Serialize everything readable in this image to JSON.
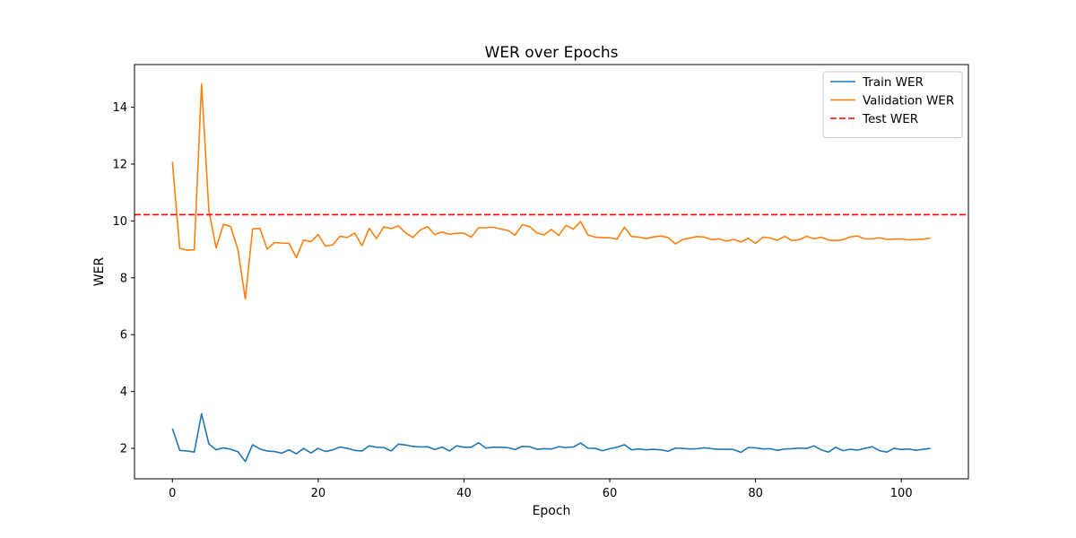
{
  "chart_data": {
    "type": "line",
    "title": "WER over Epochs",
    "xlabel": "Epoch",
    "ylabel": "WER",
    "xlim": [
      -5.2,
      109.2
    ],
    "ylim": [
      0.93,
      15.5
    ],
    "xticks": [
      0,
      20,
      40,
      60,
      80,
      100
    ],
    "yticks": [
      2,
      4,
      6,
      8,
      10,
      12,
      14
    ],
    "grid": false,
    "legend_position": "top-right",
    "series": [
      {
        "name": "Train WER",
        "color": "#1f77b4",
        "style": "solid",
        "x_start": 0,
        "values": [
          2.7,
          1.93,
          1.91,
          1.87,
          3.22,
          2.16,
          1.95,
          2.02,
          1.97,
          1.88,
          1.54,
          2.13,
          1.98,
          1.91,
          1.89,
          1.83,
          1.95,
          1.81,
          2.0,
          1.84,
          2.0,
          1.89,
          1.95,
          2.05,
          2.0,
          1.93,
          1.91,
          2.09,
          2.04,
          2.03,
          1.91,
          2.15,
          2.12,
          2.07,
          2.05,
          2.06,
          1.96,
          2.05,
          1.91,
          2.09,
          2.04,
          2.04,
          2.2,
          2.01,
          2.04,
          2.04,
          2.03,
          1.96,
          2.07,
          2.06,
          1.97,
          1.99,
          1.98,
          2.06,
          2.03,
          2.05,
          2.19,
          2.01,
          2.0,
          1.92,
          1.99,
          2.04,
          2.13,
          1.95,
          1.98,
          1.95,
          1.97,
          1.95,
          1.9,
          2.01,
          2.0,
          1.98,
          1.99,
          2.02,
          1.99,
          1.97,
          1.97,
          1.96,
          1.86,
          2.03,
          2.02,
          1.98,
          1.99,
          1.93,
          1.98,
          1.99,
          2.01,
          2.0,
          2.09,
          1.95,
          1.87,
          2.04,
          1.92,
          1.97,
          1.94,
          2.0,
          2.06,
          1.92,
          1.87,
          2.0,
          1.96,
          1.98,
          1.93,
          1.97,
          2.0
        ]
      },
      {
        "name": "Validation WER",
        "color": "#ff7f0e",
        "style": "solid",
        "x_start": 0,
        "values": [
          12.08,
          9.04,
          8.97,
          8.99,
          14.82,
          10.37,
          9.05,
          9.88,
          9.8,
          8.98,
          7.25,
          9.72,
          9.74,
          9.01,
          9.24,
          9.22,
          9.21,
          8.71,
          9.33,
          9.27,
          9.52,
          9.11,
          9.16,
          9.46,
          9.42,
          9.57,
          9.13,
          9.74,
          9.38,
          9.79,
          9.73,
          9.83,
          9.58,
          9.42,
          9.68,
          9.8,
          9.52,
          9.61,
          9.53,
          9.57,
          9.57,
          9.43,
          9.76,
          9.76,
          9.78,
          9.72,
          9.67,
          9.5,
          9.87,
          9.8,
          9.58,
          9.51,
          9.7,
          9.49,
          9.85,
          9.71,
          9.98,
          9.51,
          9.43,
          9.41,
          9.41,
          9.36,
          9.78,
          9.45,
          9.43,
          9.38,
          9.44,
          9.47,
          9.42,
          9.19,
          9.35,
          9.4,
          9.45,
          9.43,
          9.34,
          9.37,
          9.29,
          9.35,
          9.26,
          9.39,
          9.21,
          9.43,
          9.4,
          9.32,
          9.46,
          9.31,
          9.34,
          9.46,
          9.37,
          9.43,
          9.33,
          9.31,
          9.34,
          9.44,
          9.47,
          9.37,
          9.37,
          9.41,
          9.35,
          9.36,
          9.37,
          9.33,
          9.35,
          9.36,
          9.4
        ]
      },
      {
        "name": "Test WER",
        "color": "#ff0000",
        "style": "dashed",
        "constant": 10.22
      }
    ]
  }
}
